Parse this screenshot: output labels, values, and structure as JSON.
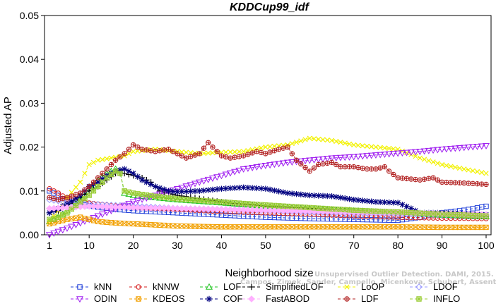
{
  "chart_data": {
    "type": "line",
    "title": "KDDCup99_idf",
    "xlabel": "Neighborhood size",
    "ylabel": "Adjusted AP",
    "xlim": [
      1,
      100
    ],
    "ylim": [
      0,
      0.05
    ],
    "xticks": [
      1,
      10,
      20,
      30,
      40,
      50,
      60,
      70,
      80,
      90,
      100
    ],
    "yticks": [
      0.0,
      0.01,
      0.02,
      0.03,
      0.04,
      0.05
    ],
    "ytick_labels": [
      "0.00",
      "0.01",
      "0.02",
      "0.03",
      "0.04",
      "0.05"
    ],
    "grid": false,
    "legend_position": "bottom",
    "series": [
      {
        "name": "kNN",
        "color": "#1f3fd9",
        "marker": "square",
        "points": [
          [
            1,
            0.01
          ],
          [
            3,
            0.009
          ],
          [
            5,
            0.0075
          ],
          [
            8,
            0.007
          ],
          [
            12,
            0.0063
          ],
          [
            16,
            0.0058
          ],
          [
            20,
            0.0055
          ],
          [
            30,
            0.005
          ],
          [
            40,
            0.0045
          ],
          [
            50,
            0.004
          ],
          [
            60,
            0.0037
          ],
          [
            70,
            0.0035
          ],
          [
            80,
            0.0033
          ],
          [
            85,
            0.004
          ],
          [
            90,
            0.005
          ],
          [
            95,
            0.0056
          ],
          [
            100,
            0.0065
          ]
        ]
      },
      {
        "name": "kNNW",
        "color": "#d62020",
        "marker": "circle",
        "points": [
          [
            1,
            0.0105
          ],
          [
            3,
            0.0095
          ],
          [
            5,
            0.0082
          ],
          [
            8,
            0.0075
          ],
          [
            12,
            0.007
          ],
          [
            16,
            0.0066
          ],
          [
            20,
            0.0062
          ],
          [
            30,
            0.0058
          ],
          [
            40,
            0.0053
          ],
          [
            50,
            0.005
          ],
          [
            60,
            0.0047
          ],
          [
            70,
            0.0043
          ],
          [
            80,
            0.004
          ],
          [
            90,
            0.0038
          ],
          [
            100,
            0.0037
          ]
        ]
      },
      {
        "name": "LOF",
        "color": "#22c422",
        "marker": "triangle-up",
        "points": [
          [
            1,
            0.003
          ],
          [
            3,
            0.004
          ],
          [
            5,
            0.0055
          ],
          [
            8,
            0.008
          ],
          [
            10,
            0.01
          ],
          [
            12,
            0.0125
          ],
          [
            14,
            0.014
          ],
          [
            16,
            0.015
          ],
          [
            17,
            0.0145
          ],
          [
            18,
            0.0095
          ],
          [
            20,
            0.009
          ],
          [
            25,
            0.0085
          ],
          [
            30,
            0.008
          ],
          [
            40,
            0.0073
          ],
          [
            50,
            0.0065
          ],
          [
            60,
            0.006
          ],
          [
            70,
            0.0055
          ],
          [
            80,
            0.005
          ],
          [
            90,
            0.0045
          ],
          [
            100,
            0.0042
          ]
        ]
      },
      {
        "name": "SimplifiedLOF",
        "color": "#000000",
        "marker": "plus",
        "points": [
          [
            1,
            0.005
          ],
          [
            3,
            0.0055
          ],
          [
            5,
            0.0065
          ],
          [
            8,
            0.0085
          ],
          [
            10,
            0.01
          ],
          [
            12,
            0.011
          ],
          [
            14,
            0.0125
          ],
          [
            16,
            0.014
          ],
          [
            18,
            0.014
          ],
          [
            20,
            0.0135
          ],
          [
            22,
            0.013
          ],
          [
            24,
            0.012
          ],
          [
            26,
            0.01
          ],
          [
            30,
            0.009
          ],
          [
            40,
            0.0075
          ],
          [
            50,
            0.0065
          ],
          [
            60,
            0.006
          ],
          [
            70,
            0.0055
          ],
          [
            80,
            0.005
          ],
          [
            90,
            0.0045
          ],
          [
            100,
            0.0042
          ]
        ]
      },
      {
        "name": "LoOP",
        "color": "#f2f200",
        "marker": "x",
        "points": [
          [
            1,
            0.003
          ],
          [
            3,
            0.0055
          ],
          [
            5,
            0.0085
          ],
          [
            8,
            0.012
          ],
          [
            10,
            0.016
          ],
          [
            12,
            0.017
          ],
          [
            15,
            0.0175
          ],
          [
            18,
            0.018
          ],
          [
            20,
            0.019
          ],
          [
            25,
            0.0195
          ],
          [
            30,
            0.019
          ],
          [
            35,
            0.0185
          ],
          [
            40,
            0.0188
          ],
          [
            45,
            0.019
          ],
          [
            50,
            0.02
          ],
          [
            55,
            0.0205
          ],
          [
            60,
            0.022
          ],
          [
            65,
            0.0215
          ],
          [
            70,
            0.0205
          ],
          [
            75,
            0.02
          ],
          [
            80,
            0.0195
          ],
          [
            85,
            0.0175
          ],
          [
            90,
            0.016
          ],
          [
            95,
            0.015
          ],
          [
            100,
            0.014
          ]
        ]
      },
      {
        "name": "LDOF",
        "color": "#9a9aff",
        "marker": "diamond",
        "points": [
          [
            1,
            0.008
          ],
          [
            5,
            0.0075
          ],
          [
            10,
            0.007
          ],
          [
            20,
            0.0065
          ],
          [
            30,
            0.006
          ],
          [
            40,
            0.0058
          ],
          [
            50,
            0.0055
          ],
          [
            60,
            0.0052
          ],
          [
            70,
            0.005
          ],
          [
            80,
            0.0048
          ],
          [
            90,
            0.0046
          ],
          [
            100,
            0.0045
          ]
        ]
      },
      {
        "name": "ODIN",
        "color": "#a020f0",
        "marker": "triangle-down",
        "points": [
          [
            1,
            0.0
          ],
          [
            5,
            0.0015
          ],
          [
            10,
            0.0035
          ],
          [
            15,
            0.0055
          ],
          [
            20,
            0.0075
          ],
          [
            25,
            0.009
          ],
          [
            30,
            0.0105
          ],
          [
            35,
            0.012
          ],
          [
            40,
            0.0135
          ],
          [
            45,
            0.015
          ],
          [
            50,
            0.0158
          ],
          [
            55,
            0.0165
          ],
          [
            60,
            0.017
          ],
          [
            65,
            0.0175
          ],
          [
            70,
            0.0178
          ],
          [
            75,
            0.0182
          ],
          [
            80,
            0.0186
          ],
          [
            85,
            0.019
          ],
          [
            90,
            0.0195
          ],
          [
            95,
            0.0199
          ],
          [
            100,
            0.0203
          ]
        ]
      },
      {
        "name": "KDEOS",
        "color": "#f2a000",
        "marker": "square-x",
        "points": [
          [
            1,
            0.0025
          ],
          [
            3,
            0.003
          ],
          [
            5,
            0.0035
          ],
          [
            8,
            0.004
          ],
          [
            10,
            0.0035
          ],
          [
            12,
            0.003
          ],
          [
            16,
            0.0027
          ],
          [
            20,
            0.0025
          ],
          [
            30,
            0.002
          ],
          [
            40,
            0.0018
          ],
          [
            50,
            0.0018
          ],
          [
            60,
            0.0018
          ],
          [
            70,
            0.0018
          ],
          [
            80,
            0.0018
          ],
          [
            90,
            0.0017
          ],
          [
            100,
            0.0017
          ]
        ]
      },
      {
        "name": "COF",
        "color": "#000080",
        "marker": "asterisk",
        "points": [
          [
            1,
            0.005
          ],
          [
            3,
            0.006
          ],
          [
            5,
            0.007
          ],
          [
            8,
            0.009
          ],
          [
            10,
            0.011
          ],
          [
            12,
            0.012
          ],
          [
            14,
            0.0135
          ],
          [
            16,
            0.0145
          ],
          [
            18,
            0.015
          ],
          [
            20,
            0.014
          ],
          [
            22,
            0.0125
          ],
          [
            25,
            0.011
          ],
          [
            28,
            0.01
          ],
          [
            30,
            0.0098
          ],
          [
            35,
            0.01
          ],
          [
            40,
            0.0105
          ],
          [
            45,
            0.0108
          ],
          [
            50,
            0.0105
          ],
          [
            55,
            0.0095
          ],
          [
            60,
            0.009
          ],
          [
            65,
            0.0088
          ],
          [
            70,
            0.008
          ],
          [
            75,
            0.0075
          ],
          [
            80,
            0.0073
          ],
          [
            83,
            0.006
          ],
          [
            85,
            0.005
          ],
          [
            90,
            0.005
          ],
          [
            95,
            0.0048
          ],
          [
            100,
            0.0046
          ]
        ]
      },
      {
        "name": "FastABOD",
        "color": "#ffb0ff",
        "marker": "diamond-filled",
        "points": [
          [
            1,
            0.006
          ],
          [
            5,
            0.0062
          ],
          [
            10,
            0.0065
          ],
          [
            20,
            0.0062
          ],
          [
            30,
            0.006
          ],
          [
            40,
            0.0058
          ],
          [
            50,
            0.0056
          ],
          [
            60,
            0.0054
          ],
          [
            70,
            0.0052
          ],
          [
            80,
            0.005
          ],
          [
            90,
            0.0048
          ],
          [
            100,
            0.0046
          ]
        ]
      },
      {
        "name": "LDF",
        "color": "#b22222",
        "marker": "circle-plus",
        "points": [
          [
            1,
            0.0085
          ],
          [
            3,
            0.008
          ],
          [
            5,
            0.0085
          ],
          [
            8,
            0.0095
          ],
          [
            10,
            0.011
          ],
          [
            12,
            0.013
          ],
          [
            14,
            0.015
          ],
          [
            16,
            0.017
          ],
          [
            18,
            0.0185
          ],
          [
            20,
            0.0205
          ],
          [
            22,
            0.0195
          ],
          [
            25,
            0.019
          ],
          [
            28,
            0.0195
          ],
          [
            30,
            0.0185
          ],
          [
            32,
            0.0175
          ],
          [
            35,
            0.0185
          ],
          [
            37,
            0.021
          ],
          [
            40,
            0.018
          ],
          [
            42,
            0.0175
          ],
          [
            45,
            0.018
          ],
          [
            48,
            0.019
          ],
          [
            50,
            0.0185
          ],
          [
            53,
            0.0195
          ],
          [
            55,
            0.02
          ],
          [
            57,
            0.017
          ],
          [
            60,
            0.0145
          ],
          [
            62,
            0.016
          ],
          [
            65,
            0.0165
          ],
          [
            67,
            0.0155
          ],
          [
            70,
            0.0155
          ],
          [
            73,
            0.015
          ],
          [
            75,
            0.015
          ],
          [
            77,
            0.0155
          ],
          [
            78,
            0.0145
          ],
          [
            80,
            0.013
          ],
          [
            82,
            0.0128
          ],
          [
            85,
            0.0125
          ],
          [
            88,
            0.013
          ],
          [
            90,
            0.012
          ],
          [
            95,
            0.0118
          ],
          [
            100,
            0.0115
          ]
        ]
      },
      {
        "name": "INFLO",
        "color": "#99cc33",
        "marker": "square-star",
        "points": [
          [
            1,
            0.0035
          ],
          [
            3,
            0.004
          ],
          [
            5,
            0.005
          ],
          [
            8,
            0.0075
          ],
          [
            10,
            0.009
          ],
          [
            12,
            0.011
          ],
          [
            14,
            0.013
          ],
          [
            16,
            0.0145
          ],
          [
            17,
            0.014
          ],
          [
            18,
            0.01
          ],
          [
            20,
            0.0095
          ],
          [
            25,
            0.0088
          ],
          [
            30,
            0.0082
          ],
          [
            40,
            0.0075
          ],
          [
            50,
            0.0068
          ],
          [
            60,
            0.0062
          ],
          [
            70,
            0.0056
          ],
          [
            80,
            0.0052
          ],
          [
            90,
            0.0047
          ],
          [
            100,
            0.0043
          ]
        ]
      }
    ]
  },
  "legend_layout": [
    [
      "kNN",
      "kNNW",
      "LOF",
      "SimplifiedLOF",
      "LoOP",
      "LDOF"
    ],
    [
      "ODIN",
      "KDEOS",
      "COF",
      "FastABOD",
      "LDF",
      "INFLO"
    ]
  ],
  "watermark": "Campos, Zimek, Sander, Campello, Micenkova, Schubert, Assent, Houle",
  "watermark_2": "Unsupervised Outlier Detection. DAMI, 2015."
}
